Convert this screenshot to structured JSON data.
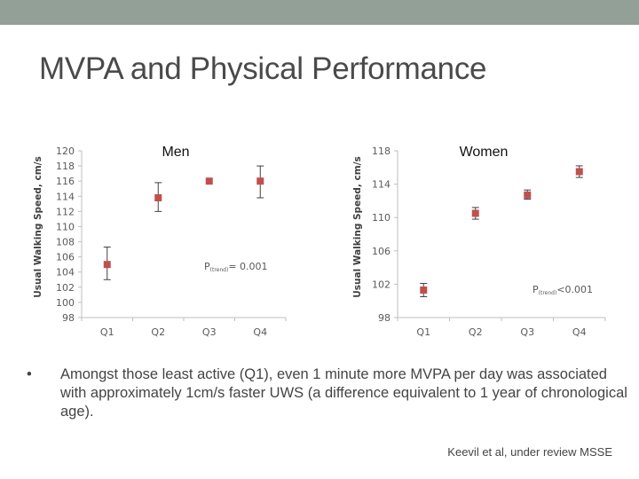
{
  "slide": {
    "title": "MVPA and Physical Performance",
    "bullet_marker": "•",
    "bullet": "Amongst those least active (Q1), even 1 minute more MVPA per day was associated with approximately 1cm/s faster UWS (a difference equivalent to 1 year of chronological age).",
    "citation": "Keevil et al, under review MSSE"
  },
  "colors": {
    "topbar": "#93a098",
    "marker": "#c0504d",
    "axis": "#bfbfbf",
    "tick_text": "#595959",
    "text": "#444444"
  },
  "chart_data": [
    {
      "type": "scatter",
      "title": "Men",
      "ylabel": "Usual Walking Speed, cm/s",
      "xlabel": "",
      "categories": [
        "Q1",
        "Q2",
        "Q3",
        "Q4"
      ],
      "values": [
        105,
        113.8,
        116,
        116
      ],
      "error_low": [
        103,
        112,
        null,
        113.8
      ],
      "error_high": [
        107.3,
        115.8,
        null,
        118
      ],
      "ylim": [
        98,
        120
      ],
      "yticks": [
        98,
        100,
        102,
        104,
        106,
        108,
        110,
        112,
        114,
        116,
        118,
        120
      ],
      "p_label": "P",
      "p_sub": "(trend)",
      "p_value": "= 0.001",
      "grid": false
    },
    {
      "type": "scatter",
      "title": "Women",
      "ylabel": "Usual Walking Speed, cm/s",
      "xlabel": "",
      "categories": [
        "Q1",
        "Q2",
        "Q3",
        "Q4"
      ],
      "values": [
        101.3,
        110.5,
        112.7,
        115.5
      ],
      "error_low": [
        100.5,
        109.8,
        112.2,
        114.8
      ],
      "error_high": [
        102.1,
        111.2,
        113.3,
        116.2
      ],
      "ylim": [
        98,
        118
      ],
      "yticks": [
        98,
        102,
        106,
        110,
        114,
        118
      ],
      "p_label": "P",
      "p_sub": "(trend)",
      "p_value": "<0.001",
      "grid": false
    }
  ]
}
